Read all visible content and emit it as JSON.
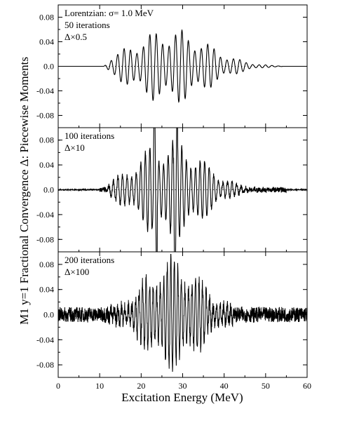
{
  "chart_data": {
    "type": "line",
    "ylabel": "M1 y=1 Fractional Convergence Δ: Piecewise Moments",
    "xlabel": "Excitation Energy (MeV)",
    "xlim": [
      0,
      60
    ],
    "xticks": [
      "0",
      "10",
      "20",
      "30",
      "40",
      "50",
      "60"
    ],
    "xtick_values": [
      0,
      10,
      20,
      30,
      40,
      50,
      60
    ],
    "panels": [
      {
        "name": "50 iterations",
        "annotations": [
          "Lorentzian: σ= 1.0 MeV",
          "50 iterations",
          "Δ×0.5"
        ],
        "ylim": [
          -0.1,
          0.1
        ],
        "yticks": [
          "0.08",
          "0.04",
          "0.0",
          "-0.04",
          "-0.08"
        ],
        "ytick_values": [
          0.08,
          0.04,
          0.0,
          -0.04,
          -0.08
        ],
        "zero_line": "dotted",
        "envelope": {
          "start": 11.0,
          "center": 27.0,
          "sigma": 9.0,
          "amp": 0.062,
          "end": 54.0
        },
        "period": 1.55,
        "noise": 0.0
      },
      {
        "name": "100 iterations",
        "annotations": [
          "100 iterations",
          "Δ×10"
        ],
        "ylim": [
          -0.1,
          0.1
        ],
        "yticks": [
          "0.08",
          "0.04",
          "0.0",
          "-0.04",
          "-0.08"
        ],
        "ytick_values": [
          0.08,
          0.04,
          0.0,
          -0.04,
          -0.08
        ],
        "zero_line": "dotted",
        "envelope": {
          "start": 11.0,
          "center": 27.0,
          "sigma": 7.5,
          "amp": 0.085,
          "end": 55.0
        },
        "period": 1.1,
        "noise": 0.004
      },
      {
        "name": "200 iterations",
        "annotations": [
          "200 iterations",
          "Δ×100"
        ],
        "ylim": [
          -0.1,
          0.1
        ],
        "yticks": [
          "0.08",
          "0.04",
          "0.0",
          "-0.04",
          "-0.08"
        ],
        "ytick_values": [
          0.08,
          0.04,
          0.0,
          -0.04,
          -0.08
        ],
        "zero_line": "none",
        "envelope": {
          "start": 0.0,
          "center": 27.5,
          "sigma": 6.5,
          "amp": 0.09,
          "end": 60.0
        },
        "period": 0.85,
        "noise": 0.012
      }
    ]
  }
}
